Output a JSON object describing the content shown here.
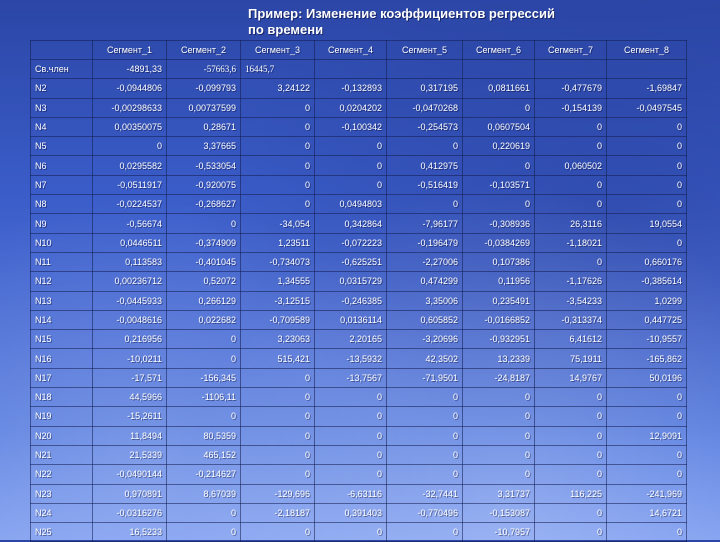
{
  "title_line1": "Пример: Изменение коэффициентов регрессий",
  "title_line2": "по времени",
  "columns": [
    "Сегмент_1",
    "Сегмент_2",
    "Сегмент_3",
    "Сегмент_4",
    "Сегмент_5",
    "Сегмент_6",
    "Сегмент_7",
    "Сегмент_8"
  ],
  "rows": [
    {
      "label": "Св.член",
      "cells": [
        "-4891,33",
        "-57663,6",
        "16445,7",
        "",
        "",
        "",
        "",
        ""
      ]
    },
    {
      "label": "N2",
      "cells": [
        "-0,0944806",
        "-0,099793",
        "3,24122",
        "-0,132893",
        "0,317195",
        "0,0811661",
        "-0,477679",
        "-1,69847"
      ]
    },
    {
      "label": "N3",
      "cells": [
        "-0,00298633",
        "0,00737599",
        "0",
        "0,0204202",
        "-0,0470268",
        "0",
        "-0,154139",
        "-0,0497545"
      ]
    },
    {
      "label": "N4",
      "cells": [
        "0,00350075",
        "0,28671",
        "0",
        "-0,100342",
        "-0,254573",
        "0,0607504",
        "0",
        "0"
      ]
    },
    {
      "label": "N5",
      "cells": [
        "0",
        "3,37665",
        "0",
        "0",
        "0",
        "0,220619",
        "0",
        "0"
      ]
    },
    {
      "label": "N6",
      "cells": [
        "0,0295582",
        "-0,533054",
        "0",
        "0",
        "0,412975",
        "0",
        "0,060502",
        "0"
      ]
    },
    {
      "label": "N7",
      "cells": [
        "-0,0511917",
        "-0,920075",
        "0",
        "0",
        "-0,516419",
        "-0,103571",
        "0",
        "0"
      ]
    },
    {
      "label": "N8",
      "cells": [
        "-0,0224537",
        "-0,268627",
        "0",
        "0,0494803",
        "0",
        "0",
        "0",
        "0"
      ]
    },
    {
      "label": "N9",
      "cells": [
        "-0,56674",
        "0",
        "-34,054",
        "0,342864",
        "-7,96177",
        "-0,308936",
        "26,3116",
        "19,0554"
      ]
    },
    {
      "label": "N10",
      "cells": [
        "0,0446511",
        "-0,374909",
        "1,23511",
        "-0,072223",
        "-0,196479",
        "-0,0384269",
        "-1,18021",
        "0"
      ]
    },
    {
      "label": "N11",
      "cells": [
        "0,113583",
        "-0,401045",
        "-0,734073",
        "-0,625251",
        "-2,27006",
        "0,107386",
        "0",
        "0,660176"
      ]
    },
    {
      "label": "N12",
      "cells": [
        "0,00236712",
        "0,52072",
        "1,34555",
        "0,0315729",
        "0,474299",
        "0,11956",
        "-1,17626",
        "-0,385614"
      ]
    },
    {
      "label": "N13",
      "cells": [
        "-0,0445933",
        "0,266129",
        "-3,12515",
        "-0,246385",
        "3,35006",
        "0,235491",
        "-3,54233",
        "1,0299"
      ]
    },
    {
      "label": "N14",
      "cells": [
        "-0,0048616",
        "0,022682",
        "-0,709589",
        "0,0136114",
        "0,605852",
        "-0,0166852",
        "-0,313374",
        "0,447725"
      ]
    },
    {
      "label": "N15",
      "cells": [
        "0,216956",
        "0",
        "3,23063",
        "2,20165",
        "-3,20696",
        "-0,932951",
        "6,41612",
        "-10,9557"
      ]
    },
    {
      "label": "N16",
      "cells": [
        "-10,0211",
        "0",
        "515,421",
        "-13,5932",
        "42,3502",
        "13,2339",
        "75,1911",
        "-165,862"
      ]
    },
    {
      "label": "N17",
      "cells": [
        "-17,571",
        "-156,345",
        "0",
        "-13,7567",
        "-71,9501",
        "-24,8187",
        "14,9767",
        "50,0196"
      ]
    },
    {
      "label": "N18",
      "cells": [
        "44,5966",
        "-1106,11",
        "0",
        "0",
        "0",
        "0",
        "0",
        "0"
      ]
    },
    {
      "label": "N19",
      "cells": [
        "-15,2611",
        "0",
        "0",
        "0",
        "0",
        "0",
        "0",
        "0"
      ]
    },
    {
      "label": "N20",
      "cells": [
        "11,8494",
        "80,5359",
        "0",
        "0",
        "0",
        "0",
        "0",
        "12,9091"
      ]
    },
    {
      "label": "N21",
      "cells": [
        "21,5339",
        "465,152",
        "0",
        "0",
        "0",
        "0",
        "0",
        "0"
      ]
    },
    {
      "label": "N22",
      "cells": [
        "-0,0490144",
        "-0,214627",
        "0",
        "0",
        "0",
        "0",
        "0",
        "0"
      ]
    },
    {
      "label": "N23",
      "cells": [
        "0,970891",
        "8,67039",
        "-129,696",
        "-6,63116",
        "-32,7441",
        "3,31737",
        "116,225",
        "-241,969"
      ]
    },
    {
      "label": "N24",
      "cells": [
        "-0,0316276",
        "0",
        "-2,18187",
        "0,391403",
        "-0,770496",
        "-0,153087",
        "0",
        "14,6721"
      ]
    },
    {
      "label": "N25",
      "cells": [
        "16,5233",
        "0",
        "0",
        "0",
        "0",
        "-10,7957",
        "0",
        "0"
      ]
    }
  ]
}
